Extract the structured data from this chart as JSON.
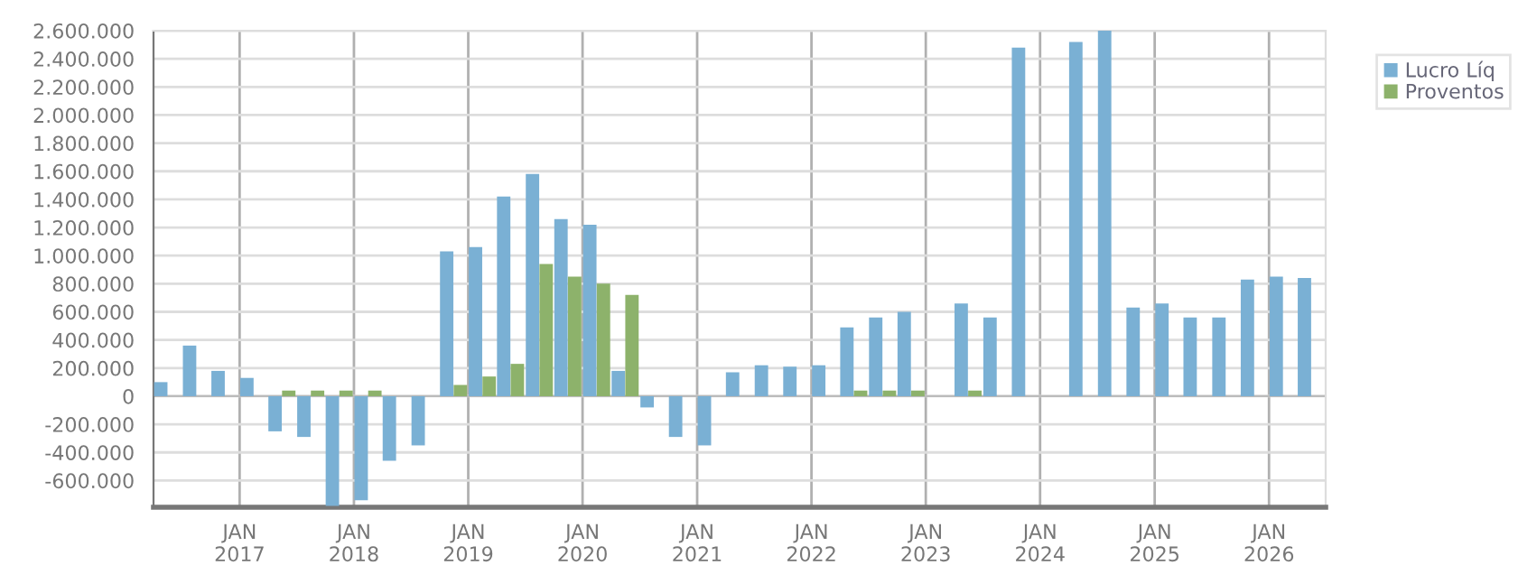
{
  "chart_data": {
    "type": "bar",
    "x": [
      "2016-05-16",
      "2016-08-16",
      "2016-11-15",
      "2017-02-15",
      "2017-05-16",
      "2017-08-16",
      "2017-11-15",
      "2018-02-15",
      "2018-05-16",
      "2018-08-16",
      "2018-11-15",
      "2019-02-15",
      "2019-05-16",
      "2019-08-16",
      "2019-11-15",
      "2020-02-15",
      "2020-05-16",
      "2020-08-16",
      "2020-11-15",
      "2021-02-15",
      "2021-05-16",
      "2021-08-16",
      "2021-11-15",
      "2022-02-15",
      "2022-05-16",
      "2022-08-16",
      "2022-11-15",
      "2023-02-15",
      "2023-05-16",
      "2023-08-16",
      "2023-11-15",
      "2024-02-15",
      "2024-05-16",
      "2024-08-16",
      "2024-11-15",
      "2025-02-15",
      "2025-05-16",
      "2025-08-16",
      "2025-11-15",
      "2026-02-15",
      "2026-05-16"
    ],
    "series": [
      {
        "name": "Lucro Líq",
        "color": "#7ab0d4",
        "values": [
          100000,
          360000,
          180000,
          130000,
          -250000,
          -290000,
          -780000,
          -740000,
          -460000,
          -350000,
          1030000,
          1060000,
          1420000,
          1580000,
          1260000,
          1220000,
          180000,
          -80000,
          -290000,
          -350000,
          170000,
          220000,
          210000,
          220000,
          490000,
          560000,
          600000,
          null,
          660000,
          560000,
          2480000,
          null,
          2520000,
          2600000,
          630000,
          660000,
          560000,
          560000,
          830000,
          850000,
          840000
        ]
      },
      {
        "name": "Proventos",
        "color": "#8db26b",
        "values": [
          0,
          0,
          0,
          0,
          40000,
          40000,
          40000,
          40000,
          0,
          0,
          80000,
          140000,
          230000,
          940000,
          850000,
          800000,
          720000,
          0,
          0,
          0,
          0,
          0,
          0,
          0,
          40000,
          40000,
          40000,
          null,
          40000,
          0,
          0,
          null,
          0,
          0,
          0,
          0,
          0,
          0,
          0,
          0,
          0
        ]
      }
    ],
    "xlim": [
      "2016-04-01",
      "2026-07-01"
    ],
    "xticks": [
      {
        "value": "2017-01-01",
        "label": "JAN\n2017"
      },
      {
        "value": "2018-01-01",
        "label": "JAN\n2018"
      },
      {
        "value": "2019-01-01",
        "label": "JAN\n2019"
      },
      {
        "value": "2020-01-01",
        "label": "JAN\n2020"
      },
      {
        "value": "2021-01-01",
        "label": "JAN\n2021"
      },
      {
        "value": "2022-01-01",
        "label": "JAN\n2022"
      },
      {
        "value": "2023-01-01",
        "label": "JAN\n2023"
      },
      {
        "value": "2024-01-01",
        "label": "JAN\n2024"
      },
      {
        "value": "2025-01-01",
        "label": "JAN\n2025"
      },
      {
        "value": "2026-01-01",
        "label": "JAN\n2026"
      }
    ],
    "ylim": [
      -790000,
      2600000
    ],
    "yticks": [
      {
        "value": -600000,
        "label": "-600.000"
      },
      {
        "value": -400000,
        "label": "-400.000"
      },
      {
        "value": -200000,
        "label": "-200.000"
      },
      {
        "value": 0,
        "label": "0"
      },
      {
        "value": 200000,
        "label": "200.000"
      },
      {
        "value": 400000,
        "label": "400.000"
      },
      {
        "value": 600000,
        "label": "600.000"
      },
      {
        "value": 800000,
        "label": "800.000"
      },
      {
        "value": 1000000,
        "label": "1.000.000"
      },
      {
        "value": 1200000,
        "label": "1.200.000"
      },
      {
        "value": 1400000,
        "label": "1.400.000"
      },
      {
        "value": 1600000,
        "label": "1.600.000"
      },
      {
        "value": 1800000,
        "label": "1.800.000"
      },
      {
        "value": 2000000,
        "label": "2.000.000"
      },
      {
        "value": 2200000,
        "label": "2.200.000"
      },
      {
        "value": 2400000,
        "label": "2.400.000"
      },
      {
        "value": 2600000,
        "label": "2.600.000"
      }
    ],
    "grid": true,
    "legend": "top right"
  }
}
